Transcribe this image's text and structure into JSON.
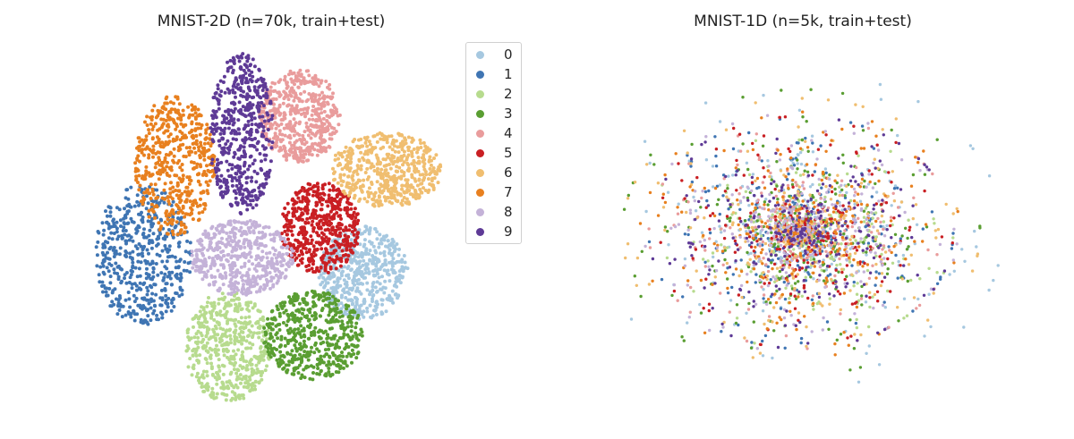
{
  "palette": {
    "0": "#a6c8e0",
    "1": "#3f75b3",
    "2": "#b7db8e",
    "3": "#5a9e32",
    "4": "#e99c9c",
    "5": "#c91f23",
    "6": "#f0be70",
    "7": "#e8801f",
    "8": "#c4b2d8",
    "9": "#5e3a96"
  },
  "legend": {
    "entries": [
      {
        "label": "0",
        "color": "#a6c8e0"
      },
      {
        "label": "1",
        "color": "#3f75b3"
      },
      {
        "label": "2",
        "color": "#b7db8e"
      },
      {
        "label": "3",
        "color": "#5a9e32"
      },
      {
        "label": "4",
        "color": "#e99c9c"
      },
      {
        "label": "5",
        "color": "#c91f23"
      },
      {
        "label": "6",
        "color": "#f0be70"
      },
      {
        "label": "7",
        "color": "#e8801f"
      },
      {
        "label": "8",
        "color": "#c4b2d8"
      },
      {
        "label": "9",
        "color": "#5e3a96"
      }
    ]
  },
  "chart_data": [
    {
      "type": "scatter",
      "title": "MNIST-2D (n=70k, train+test)",
      "axes_visible": false,
      "legend_placement": "right",
      "series": [
        {
          "name": "0",
          "cluster_center": [
            406,
            305
          ],
          "cluster_extent": [
            50,
            52
          ]
        },
        {
          "name": "1",
          "cluster_center": [
            160,
            285
          ],
          "cluster_extent": [
            54,
            78
          ]
        },
        {
          "name": "2",
          "cluster_center": [
            255,
            388
          ],
          "cluster_extent": [
            48,
            62
          ]
        },
        {
          "name": "3",
          "cluster_center": [
            350,
            375
          ],
          "cluster_extent": [
            56,
            50
          ]
        },
        {
          "name": "4",
          "cluster_center": [
            335,
            130
          ],
          "cluster_extent": [
            45,
            52
          ]
        },
        {
          "name": "5",
          "cluster_center": [
            358,
            255
          ],
          "cluster_extent": [
            44,
            52
          ]
        },
        {
          "name": "6",
          "cluster_center": [
            432,
            190
          ],
          "cluster_extent": [
            62,
            42
          ]
        },
        {
          "name": "7",
          "cluster_center": [
            195,
            185
          ],
          "cluster_extent": [
            45,
            78
          ]
        },
        {
          "name": "8",
          "cluster_center": [
            270,
            288
          ],
          "cluster_extent": [
            58,
            42
          ]
        },
        {
          "name": "9",
          "cluster_center": [
            270,
            150
          ],
          "cluster_extent": [
            36,
            90
          ]
        }
      ]
    },
    {
      "type": "scatter",
      "title": "MNIST-1D (n=5k, train+test)",
      "axes_visible": false,
      "series": [
        {
          "name": "0",
          "cluster_center": [
            895,
            260
          ],
          "cluster_extent": [
            225,
            180
          ]
        },
        {
          "name": "1",
          "cluster_center": [
            895,
            260
          ],
          "cluster_extent": [
            170,
            130
          ]
        },
        {
          "name": "2",
          "cluster_center": [
            895,
            260
          ],
          "cluster_extent": [
            170,
            130
          ]
        },
        {
          "name": "3",
          "cluster_center": [
            895,
            260
          ],
          "cluster_extent": [
            200,
            160
          ]
        },
        {
          "name": "4",
          "cluster_center": [
            895,
            260
          ],
          "cluster_extent": [
            170,
            130
          ]
        },
        {
          "name": "5",
          "cluster_center": [
            895,
            260
          ],
          "cluster_extent": [
            170,
            130
          ]
        },
        {
          "name": "6",
          "cluster_center": [
            895,
            260
          ],
          "cluster_extent": [
            200,
            150
          ]
        },
        {
          "name": "7",
          "cluster_center": [
            895,
            260
          ],
          "cluster_extent": [
            180,
            140
          ]
        },
        {
          "name": "8",
          "cluster_center": [
            895,
            260
          ],
          "cluster_extent": [
            175,
            135
          ]
        },
        {
          "name": "9",
          "cluster_center": [
            895,
            260
          ],
          "cluster_extent": [
            170,
            130
          ]
        }
      ]
    }
  ]
}
